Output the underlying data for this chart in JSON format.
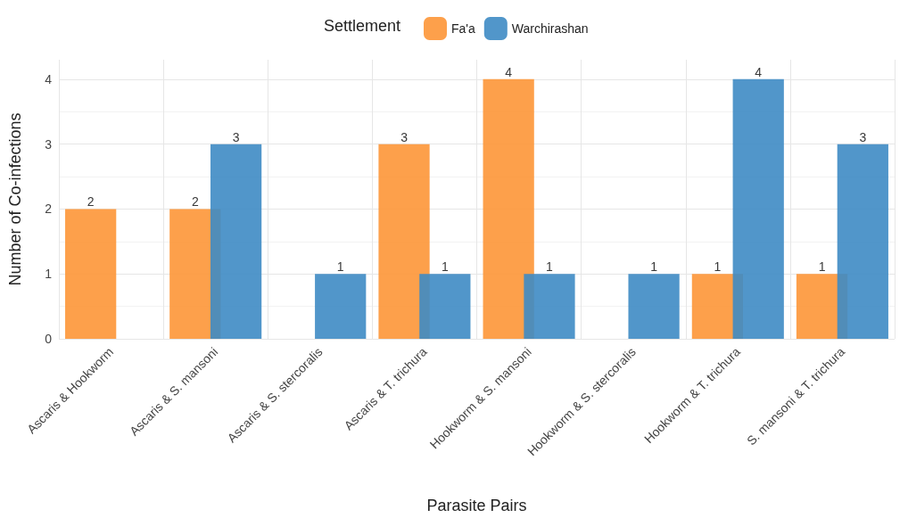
{
  "chart_data": {
    "type": "bar",
    "xlabel": "Parasite Pairs",
    "ylabel": "Number of Co-infections",
    "legend_title": "Settlement",
    "categories": [
      "Ascaris & Hookworm",
      "Ascaris & S. mansoni",
      "Ascaris & S. stercoralis",
      "Ascaris & T. trichura",
      "Hookworm & S. mansoni",
      "Hookworm & S. stercoralis",
      "Hookworm & T. trichura",
      "S. mansoni & T. trichura"
    ],
    "series": [
      {
        "name": "Fa'a",
        "color": "#fd9637",
        "values": [
          2,
          2,
          null,
          3,
          4,
          null,
          1,
          1
        ]
      },
      {
        "name": "Warchirashan",
        "color": "#3e8bc4",
        "values": [
          null,
          3,
          1,
          1,
          1,
          1,
          4,
          3
        ]
      }
    ],
    "ylim": [
      0,
      4.3
    ],
    "yticks": [
      0,
      1,
      2,
      3,
      4
    ],
    "grid": true,
    "legend": "top",
    "data_labels": true
  }
}
